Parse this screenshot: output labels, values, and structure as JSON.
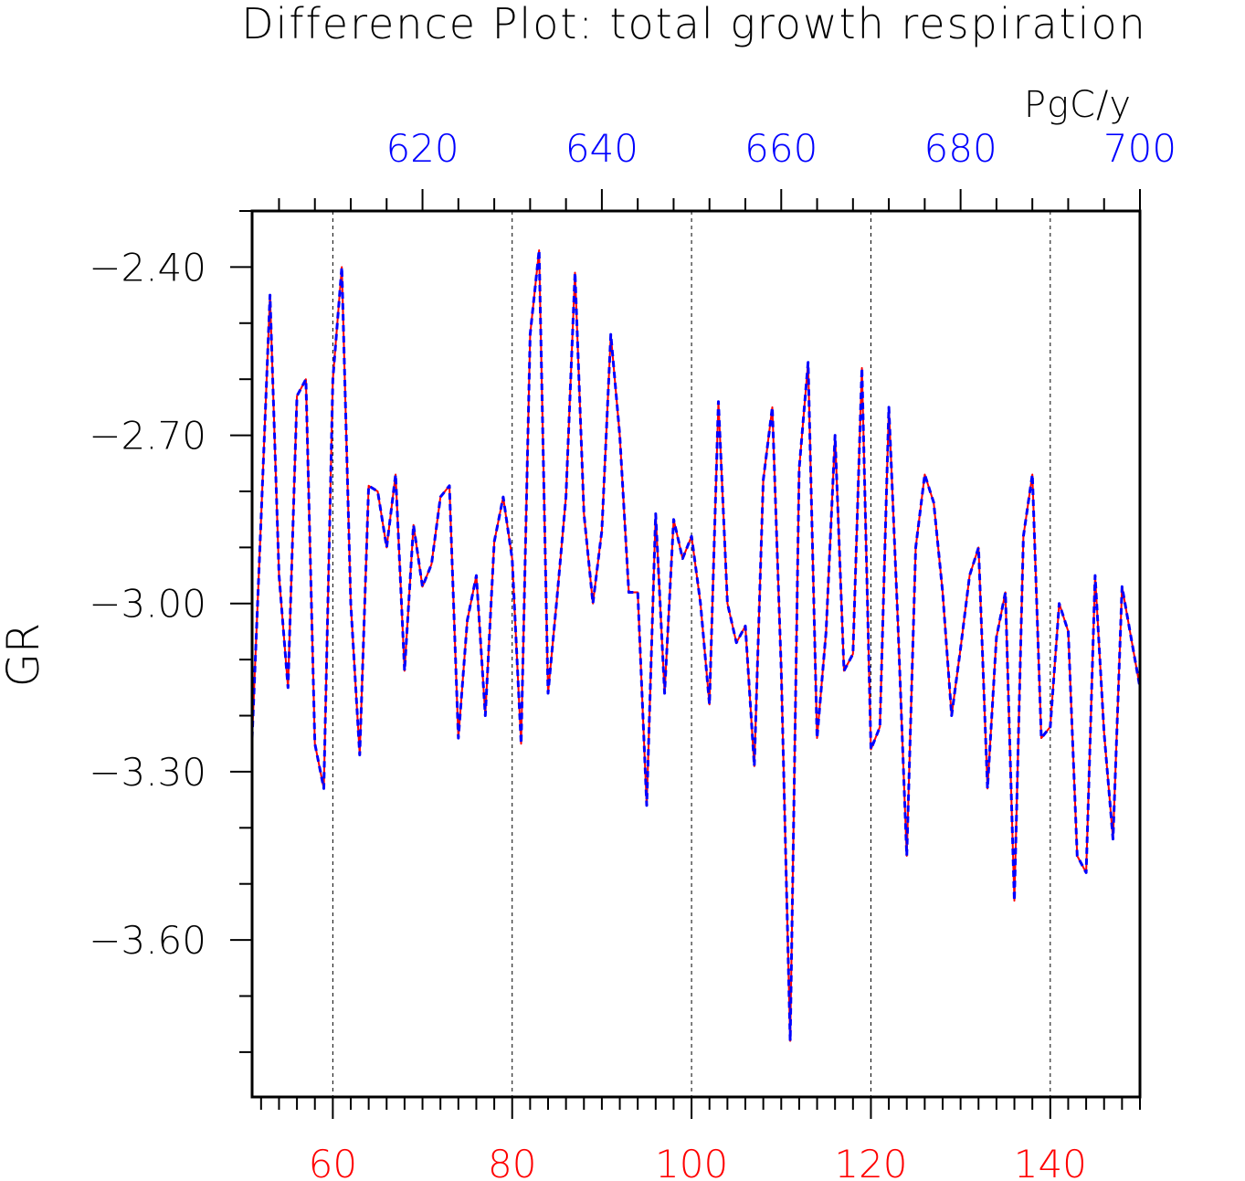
{
  "chart_data": {
    "type": "line",
    "title": "Difference Plot: total growth respiration",
    "units": "PgC/y",
    "ylabel": "GR",
    "xlabel": "",
    "xlim": [
      51,
      150
    ],
    "x_ticks": [
      60,
      80,
      100,
      120,
      140
    ],
    "x_tick_labels": [
      "60",
      "80",
      "100",
      "120",
      "140"
    ],
    "x_top_lim": [
      601,
      700
    ],
    "x_top_ticks": [
      620,
      640,
      660,
      680,
      700
    ],
    "x_top_tick_labels": [
      "620",
      "640",
      "660",
      "680",
      "700"
    ],
    "ylim": [
      -3.88,
      -2.3
    ],
    "y_ticks": [
      -2.4,
      -2.7,
      -3.0,
      -3.3,
      -3.6
    ],
    "y_tick_labels": [
      "−2.40",
      "−2.70",
      "−3.00",
      "−3.30",
      "−3.60"
    ],
    "grid": "vertical dotted lines at bottom x ticks",
    "colors": {
      "bottom_axis": "#ff0000",
      "top_axis": "#0000ff",
      "series_1": "#ff0000",
      "series_2": "#0000ff",
      "axes": "#000000",
      "grid": "#000000"
    },
    "x": [
      51,
      52,
      53,
      54,
      55,
      56,
      57,
      58,
      59,
      60,
      61,
      62,
      63,
      64,
      65,
      66,
      67,
      68,
      69,
      70,
      71,
      72,
      73,
      74,
      75,
      76,
      77,
      78,
      79,
      80,
      81,
      82,
      83,
      84,
      85,
      86,
      87,
      88,
      89,
      90,
      91,
      92,
      93,
      94,
      95,
      96,
      97,
      98,
      99,
      100,
      101,
      102,
      103,
      104,
      105,
      106,
      107,
      108,
      109,
      110,
      111,
      112,
      113,
      114,
      115,
      116,
      117,
      118,
      119,
      120,
      121,
      122,
      123,
      124,
      125,
      126,
      127,
      128,
      129,
      130,
      131,
      132,
      133,
      134,
      135,
      136,
      137,
      138,
      139,
      140,
      141,
      142,
      143,
      144,
      145,
      146,
      147,
      148,
      149,
      150
    ],
    "series": [
      {
        "style": "solid",
        "values": [
          -3.24,
          -2.85,
          -2.45,
          -2.95,
          -3.15,
          -2.63,
          -2.6,
          -3.25,
          -3.33,
          -2.6,
          -2.4,
          -3.0,
          -3.27,
          -2.79,
          -2.8,
          -2.9,
          -2.77,
          -3.12,
          -2.86,
          -2.97,
          -2.93,
          -2.81,
          -2.79,
          -3.24,
          -3.03,
          -2.95,
          -3.2,
          -2.89,
          -2.81,
          -2.92,
          -3.25,
          -2.52,
          -2.37,
          -3.16,
          -2.99,
          -2.81,
          -2.41,
          -2.84,
          -3.0,
          -2.87,
          -2.52,
          -2.7,
          -2.98,
          -2.98,
          -3.36,
          -2.84,
          -3.16,
          -2.85,
          -2.92,
          -2.88,
          -3.0,
          -3.18,
          -2.64,
          -3.0,
          -3.07,
          -3.04,
          -3.29,
          -2.78,
          -2.65,
          -3.12,
          -3.78,
          -2.76,
          -2.57,
          -3.24,
          -3.05,
          -2.7,
          -3.12,
          -3.09,
          -2.58,
          -3.26,
          -3.22,
          -2.65,
          -3.03,
          -3.45,
          -2.9,
          -2.77,
          -2.82,
          -2.98,
          -3.2,
          -3.08,
          -2.95,
          -2.9,
          -3.33,
          -3.06,
          -2.98,
          -3.53,
          -2.88,
          -2.77,
          -3.24,
          -3.22,
          -3.0,
          -3.05,
          -3.45,
          -3.48,
          -2.95,
          -3.23,
          -3.42,
          -2.97,
          -3.06,
          -3.15
        ]
      },
      {
        "style": "dashed",
        "values": [
          -3.24,
          -2.85,
          -2.45,
          -2.95,
          -3.15,
          -2.63,
          -2.6,
          -3.25,
          -3.33,
          -2.6,
          -2.4,
          -3.0,
          -3.27,
          -2.79,
          -2.8,
          -2.9,
          -2.77,
          -3.12,
          -2.86,
          -2.97,
          -2.93,
          -2.81,
          -2.79,
          -3.24,
          -3.03,
          -2.95,
          -3.2,
          -2.89,
          -2.81,
          -2.92,
          -3.25,
          -2.52,
          -2.37,
          -3.16,
          -2.99,
          -2.81,
          -2.41,
          -2.84,
          -3.0,
          -2.87,
          -2.52,
          -2.7,
          -2.98,
          -2.98,
          -3.36,
          -2.84,
          -3.16,
          -2.85,
          -2.92,
          -2.88,
          -3.0,
          -3.18,
          -2.64,
          -3.0,
          -3.07,
          -3.04,
          -3.29,
          -2.78,
          -2.65,
          -3.12,
          -3.78,
          -2.76,
          -2.57,
          -3.24,
          -3.05,
          -2.7,
          -3.12,
          -3.09,
          -2.58,
          -3.26,
          -3.22,
          -2.65,
          -3.03,
          -3.45,
          -2.9,
          -2.77,
          -2.82,
          -2.98,
          -3.2,
          -3.08,
          -2.95,
          -2.9,
          -3.33,
          -3.06,
          -2.98,
          -3.53,
          -2.88,
          -2.77,
          -3.24,
          -3.22,
          -3.0,
          -3.05,
          -3.45,
          -3.48,
          -2.95,
          -3.23,
          -3.42,
          -2.97,
          -3.06,
          -3.15
        ]
      }
    ]
  }
}
